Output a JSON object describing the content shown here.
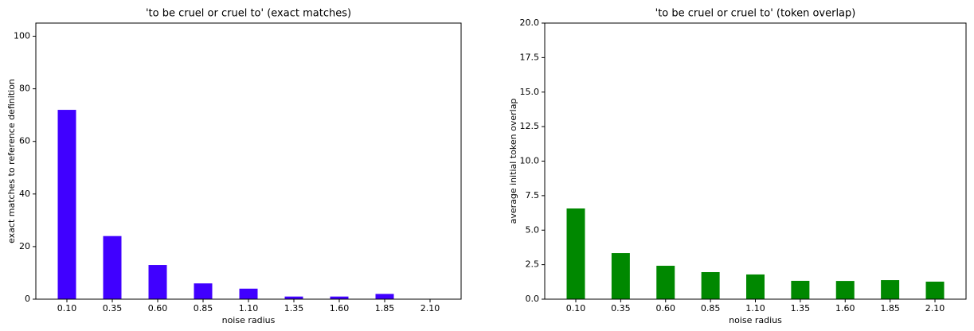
{
  "chart_data": [
    {
      "type": "bar",
      "title": "'to be cruel or cruel to' (exact matches)",
      "xlabel": "noise radius",
      "ylabel": "exact matches to reference definition",
      "categories": [
        "0.10",
        "0.35",
        "0.60",
        "0.85",
        "1.10",
        "1.35",
        "1.60",
        "1.85",
        "2.10"
      ],
      "values": [
        72,
        24,
        13,
        6,
        4,
        1,
        1,
        2,
        0
      ],
      "color": "#4000ff",
      "ylim": [
        0,
        105
      ],
      "yticks": [
        0,
        20,
        40,
        60,
        80,
        100
      ]
    },
    {
      "type": "bar",
      "title": "'to be cruel or cruel to' (token overlap)",
      "xlabel": "noise radius",
      "ylabel": "average initial token overlap",
      "categories": [
        "0.10",
        "0.35",
        "0.60",
        "0.85",
        "1.10",
        "1.35",
        "1.60",
        "1.85",
        "2.10"
      ],
      "values": [
        6.57,
        3.34,
        2.42,
        1.96,
        1.79,
        1.33,
        1.32,
        1.38,
        1.27
      ],
      "color": "#008800",
      "ylim": [
        0,
        20
      ],
      "yticks": [
        {
          "value": 0,
          "label": "0.0"
        },
        2.5,
        {
          "value": 5,
          "label": "5.0"
        },
        7.5,
        {
          "value": 10,
          "label": "10.0"
        },
        12.5,
        {
          "value": 15,
          "label": "15.0"
        },
        17.5,
        {
          "value": 20,
          "label": "20.0"
        }
      ]
    }
  ]
}
